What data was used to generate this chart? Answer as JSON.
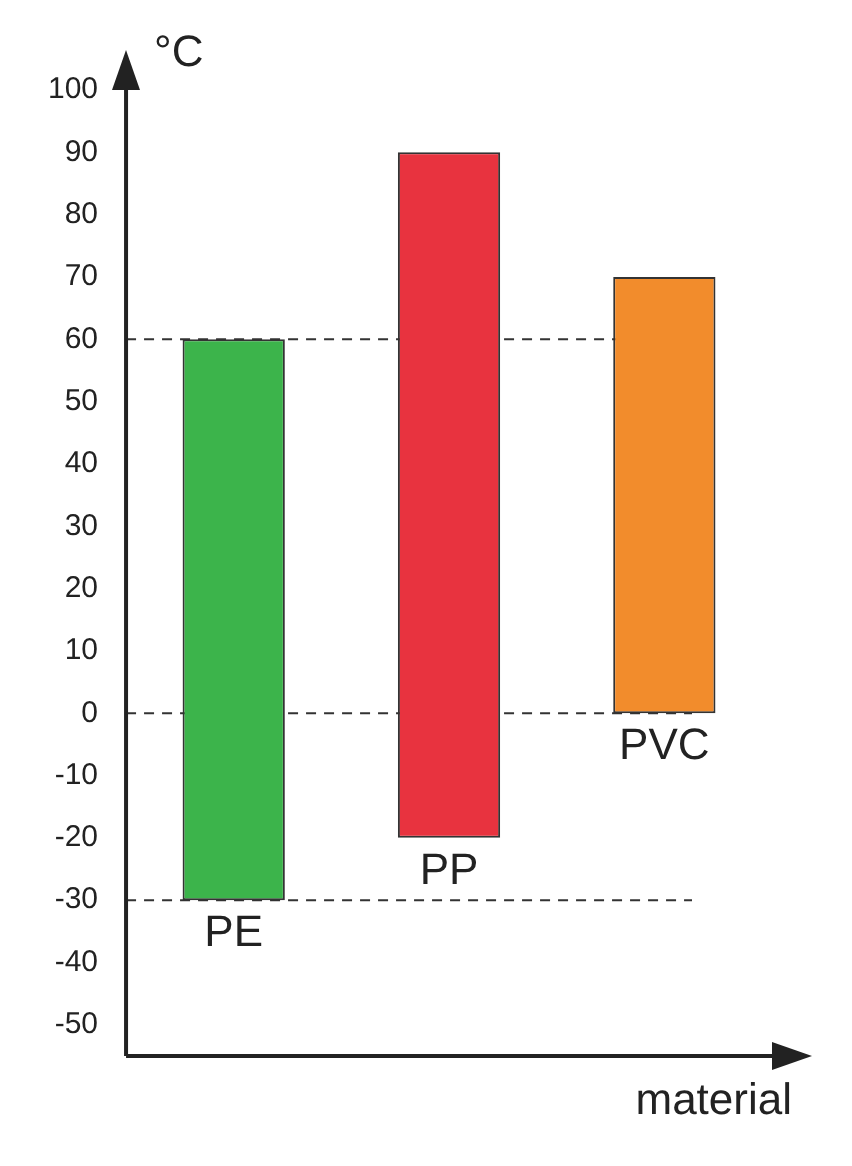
{
  "chart_data": {
    "type": "bar",
    "ylabel": "°C",
    "xlabel": "material",
    "categories": [
      "PE",
      "PP",
      "PVC"
    ],
    "base": [
      -30,
      -20,
      0
    ],
    "values": [
      90,
      110,
      70
    ],
    "colors": [
      "#3cb44b",
      "#e8333f",
      "#f28c2c"
    ],
    "ylim": [
      -55,
      100
    ],
    "yticks": [
      -50,
      -40,
      -30,
      -20,
      -10,
      0,
      10,
      20,
      30,
      40,
      50,
      60,
      70,
      80,
      90,
      100
    ],
    "tick_labels": "y",
    "grid": false,
    "legend": false,
    "ref_lines": [
      {
        "axis": "y",
        "value": 60,
        "line_style": "dashed",
        "color": "#333333"
      },
      {
        "axis": "y",
        "value": 0,
        "line_style": "dashed",
        "color": "#333333"
      },
      {
        "axis": "y",
        "value": -30,
        "line_style": "dashed",
        "color": "#333333"
      }
    ]
  }
}
